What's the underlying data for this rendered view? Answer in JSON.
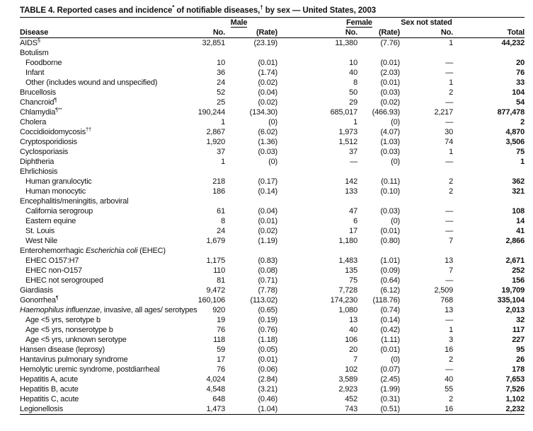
{
  "title": {
    "segments": [
      {
        "t": "TABLE 4. Reported cases and incidence",
        "sup": false
      },
      {
        "t": "*",
        "sup": true
      },
      {
        "t": " of notifiable diseases,",
        "sup": false
      },
      {
        "t": "†",
        "sup": true
      },
      {
        "t": " by sex — United States, 2003",
        "sup": false
      }
    ]
  },
  "header": {
    "disease": "Disease",
    "male_group": "Male",
    "female_group": "Female",
    "sex_not_stated_group": "Sex not stated",
    "no_label": "No.",
    "rate_label": "(Rate)",
    "total_label": "Total"
  },
  "rows": [
    {
      "parts": [
        {
          "t": "AIDS"
        }
      ],
      "sup": "§",
      "indent": 0,
      "group": false,
      "male_no": "32,851",
      "male_rate": "(23.19)",
      "female_no": "11,380",
      "female_rate": "(7.76)",
      "ns_no": "1",
      "total": "44,232"
    },
    {
      "parts": [
        {
          "t": "Botulism"
        }
      ],
      "indent": 0,
      "group": true
    },
    {
      "parts": [
        {
          "t": "Foodborne"
        }
      ],
      "indent": 1,
      "group": false,
      "male_no": "10",
      "male_rate": "(0.01)",
      "female_no": "10",
      "female_rate": "(0.01)",
      "ns_no": "—",
      "total": "20"
    },
    {
      "parts": [
        {
          "t": "Infant"
        }
      ],
      "indent": 1,
      "group": false,
      "male_no": "36",
      "male_rate": "(1.74)",
      "female_no": "40",
      "female_rate": "(2.03)",
      "ns_no": "—",
      "total": "76"
    },
    {
      "parts": [
        {
          "t": "Other (includes wound and unspecified)"
        }
      ],
      "indent": 1,
      "group": false,
      "male_no": "24",
      "male_rate": "(0.02)",
      "female_no": "8",
      "female_rate": "(0.01)",
      "ns_no": "1",
      "total": "33"
    },
    {
      "parts": [
        {
          "t": "Brucellosis"
        }
      ],
      "indent": 0,
      "group": false,
      "male_no": "52",
      "male_rate": "(0.04)",
      "female_no": "50",
      "female_rate": "(0.03)",
      "ns_no": "2",
      "total": "104"
    },
    {
      "parts": [
        {
          "t": "Chancroid"
        }
      ],
      "sup": "¶",
      "indent": 0,
      "group": false,
      "male_no": "25",
      "male_rate": "(0.02)",
      "female_no": "29",
      "female_rate": "(0.02)",
      "ns_no": "—",
      "total": "54"
    },
    {
      "parts": [
        {
          "t": "Chlamydia"
        }
      ],
      "sup": "¶**",
      "indent": 0,
      "group": false,
      "male_no": "190,244",
      "male_rate": "(134.30)",
      "female_no": "685,017",
      "female_rate": "(466.93)",
      "ns_no": "2,217",
      "total": "877,478"
    },
    {
      "parts": [
        {
          "t": "Cholera"
        }
      ],
      "indent": 0,
      "group": false,
      "male_no": "1",
      "male_rate": "(0)",
      "female_no": "1",
      "female_rate": "(0)",
      "ns_no": "—",
      "total": "2"
    },
    {
      "parts": [
        {
          "t": "Coccidioidomycosis"
        }
      ],
      "sup": "††",
      "indent": 0,
      "group": false,
      "male_no": "2,867",
      "male_rate": "(6.02)",
      "female_no": "1,973",
      "female_rate": "(4.07)",
      "ns_no": "30",
      "total": "4,870"
    },
    {
      "parts": [
        {
          "t": "Cryptosporidiosis"
        }
      ],
      "indent": 0,
      "group": false,
      "male_no": "1,920",
      "male_rate": "(1.36)",
      "female_no": "1,512",
      "female_rate": "(1.03)",
      "ns_no": "74",
      "total": "3,506"
    },
    {
      "parts": [
        {
          "t": "Cyclosporiasis"
        }
      ],
      "indent": 0,
      "group": false,
      "male_no": "37",
      "male_rate": "(0.03)",
      "female_no": "37",
      "female_rate": "(0.03)",
      "ns_no": "1",
      "total": "75"
    },
    {
      "parts": [
        {
          "t": "Diphtheria"
        }
      ],
      "indent": 0,
      "group": false,
      "male_no": "1",
      "male_rate": "(0)",
      "female_no": "—",
      "female_rate": "(0)",
      "ns_no": "—",
      "total": "1"
    },
    {
      "parts": [
        {
          "t": "Ehrlichiosis"
        }
      ],
      "indent": 0,
      "group": true
    },
    {
      "parts": [
        {
          "t": "Human granulocytic"
        }
      ],
      "indent": 1,
      "group": false,
      "male_no": "218",
      "male_rate": "(0.17)",
      "female_no": "142",
      "female_rate": "(0.11)",
      "ns_no": "2",
      "total": "362"
    },
    {
      "parts": [
        {
          "t": "Human monocytic"
        }
      ],
      "indent": 1,
      "group": false,
      "male_no": "186",
      "male_rate": "(0.14)",
      "female_no": "133",
      "female_rate": "(0.10)",
      "ns_no": "2",
      "total": "321"
    },
    {
      "parts": [
        {
          "t": "Encephalitis/meningitis, arboviral"
        }
      ],
      "indent": 0,
      "group": true
    },
    {
      "parts": [
        {
          "t": "California serogroup"
        }
      ],
      "indent": 1,
      "group": false,
      "male_no": "61",
      "male_rate": "(0.04)",
      "female_no": "47",
      "female_rate": "(0.03)",
      "ns_no": "—",
      "total": "108"
    },
    {
      "parts": [
        {
          "t": "Eastern equine"
        }
      ],
      "indent": 1,
      "group": false,
      "male_no": "8",
      "male_rate": "(0.01)",
      "female_no": "6",
      "female_rate": "(0)",
      "ns_no": "—",
      "total": "14"
    },
    {
      "parts": [
        {
          "t": "St. Louis"
        }
      ],
      "indent": 1,
      "group": false,
      "male_no": "24",
      "male_rate": "(0.02)",
      "female_no": "17",
      "female_rate": "(0.01)",
      "ns_no": "—",
      "total": "41"
    },
    {
      "parts": [
        {
          "t": "West Nile"
        }
      ],
      "indent": 1,
      "group": false,
      "male_no": "1,679",
      "male_rate": "(1.19)",
      "female_no": "1,180",
      "female_rate": "(0.80)",
      "ns_no": "7",
      "total": "2,866"
    },
    {
      "parts": [
        {
          "t": "Enterohemorrhagic "
        },
        {
          "t": "Escherichia coli",
          "i": true
        },
        {
          "t": " (EHEC)"
        }
      ],
      "indent": 0,
      "group": true
    },
    {
      "parts": [
        {
          "t": "EHEC O157:H7"
        }
      ],
      "indent": 1,
      "group": false,
      "male_no": "1,175",
      "male_rate": "(0.83)",
      "female_no": "1,483",
      "female_rate": "(1.01)",
      "ns_no": "13",
      "total": "2,671"
    },
    {
      "parts": [
        {
          "t": "EHEC non-O157"
        }
      ],
      "indent": 1,
      "group": false,
      "male_no": "110",
      "male_rate": "(0.08)",
      "female_no": "135",
      "female_rate": "(0.09)",
      "ns_no": "7",
      "total": "252"
    },
    {
      "parts": [
        {
          "t": "EHEC not serogrouped"
        }
      ],
      "indent": 1,
      "group": false,
      "male_no": "81",
      "male_rate": "(0.71)",
      "female_no": "75",
      "female_rate": "(0.64)",
      "ns_no": "—",
      "total": "156"
    },
    {
      "parts": [
        {
          "t": "Giardiasis"
        }
      ],
      "indent": 0,
      "group": false,
      "male_no": "9,472",
      "male_rate": "(7.78)",
      "female_no": "7,728",
      "female_rate": "(6.12)",
      "ns_no": "2,509",
      "total": "19,709"
    },
    {
      "parts": [
        {
          "t": "Gonorrhea"
        }
      ],
      "sup": "¶",
      "indent": 0,
      "group": false,
      "male_no": "160,106",
      "male_rate": "(113.02)",
      "female_no": "174,230",
      "female_rate": "(118.76)",
      "ns_no": "768",
      "total": "335,104"
    },
    {
      "parts": [
        {
          "t": "Haemophilus influenzae",
          "i": true
        },
        {
          "t": ", invasive, all ages/ serotypes"
        }
      ],
      "indent": 0,
      "group": false,
      "male_no": "920",
      "male_rate": "(0.65)",
      "female_no": "1,080",
      "female_rate": "(0.74)",
      "ns_no": "13",
      "total": "2,013"
    },
    {
      "parts": [
        {
          "t": "Age <5 yrs, serotype b"
        }
      ],
      "indent": 1,
      "group": false,
      "male_no": "19",
      "male_rate": "(0.19)",
      "female_no": "13",
      "female_rate": "(0.14)",
      "ns_no": "—",
      "total": "32"
    },
    {
      "parts": [
        {
          "t": "Age <5 yrs, nonserotype b"
        }
      ],
      "indent": 1,
      "group": false,
      "male_no": "76",
      "male_rate": "(0.76)",
      "female_no": "40",
      "female_rate": "(0.42)",
      "ns_no": "1",
      "total": "117"
    },
    {
      "parts": [
        {
          "t": "Age <5 yrs, unknown serotype"
        }
      ],
      "indent": 1,
      "group": false,
      "male_no": "118",
      "male_rate": "(1.18)",
      "female_no": "106",
      "female_rate": "(1.11)",
      "ns_no": "3",
      "total": "227"
    },
    {
      "parts": [
        {
          "t": "Hansen disease (leprosy)"
        }
      ],
      "indent": 0,
      "group": false,
      "male_no": "59",
      "male_rate": "(0.05)",
      "female_no": "20",
      "female_rate": "(0.01)",
      "ns_no": "16",
      "total": "95"
    },
    {
      "parts": [
        {
          "t": "Hantavirus pulmonary syndrome"
        }
      ],
      "indent": 0,
      "group": false,
      "male_no": "17",
      "male_rate": "(0.01)",
      "female_no": "7",
      "female_rate": "(0)",
      "ns_no": "2",
      "total": "26"
    },
    {
      "parts": [
        {
          "t": "Hemolytic uremic syndrome, postdiarrheal"
        }
      ],
      "indent": 0,
      "group": false,
      "male_no": "76",
      "male_rate": "(0.06)",
      "female_no": "102",
      "female_rate": "(0.07)",
      "ns_no": "—",
      "total": "178"
    },
    {
      "parts": [
        {
          "t": "Hepatitis A, acute"
        }
      ],
      "indent": 0,
      "group": false,
      "male_no": "4,024",
      "male_rate": "(2.84)",
      "female_no": "3,589",
      "female_rate": "(2.45)",
      "ns_no": "40",
      "total": "7,653"
    },
    {
      "parts": [
        {
          "t": "Hepatitis B, acute"
        }
      ],
      "indent": 0,
      "group": false,
      "male_no": "4,548",
      "male_rate": "(3.21)",
      "female_no": "2,923",
      "female_rate": "(1.99)",
      "ns_no": "55",
      "total": "7,526"
    },
    {
      "parts": [
        {
          "t": "Hepatitis C, acute"
        }
      ],
      "indent": 0,
      "group": false,
      "male_no": "648",
      "male_rate": "(0.46)",
      "female_no": "452",
      "female_rate": "(0.31)",
      "ns_no": "2",
      "total": "1,102"
    },
    {
      "parts": [
        {
          "t": "Legionellosis"
        }
      ],
      "indent": 0,
      "group": false,
      "male_no": "1,473",
      "male_rate": "(1.04)",
      "female_no": "743",
      "female_rate": "(0.51)",
      "ns_no": "16",
      "total": "2,232"
    }
  ]
}
